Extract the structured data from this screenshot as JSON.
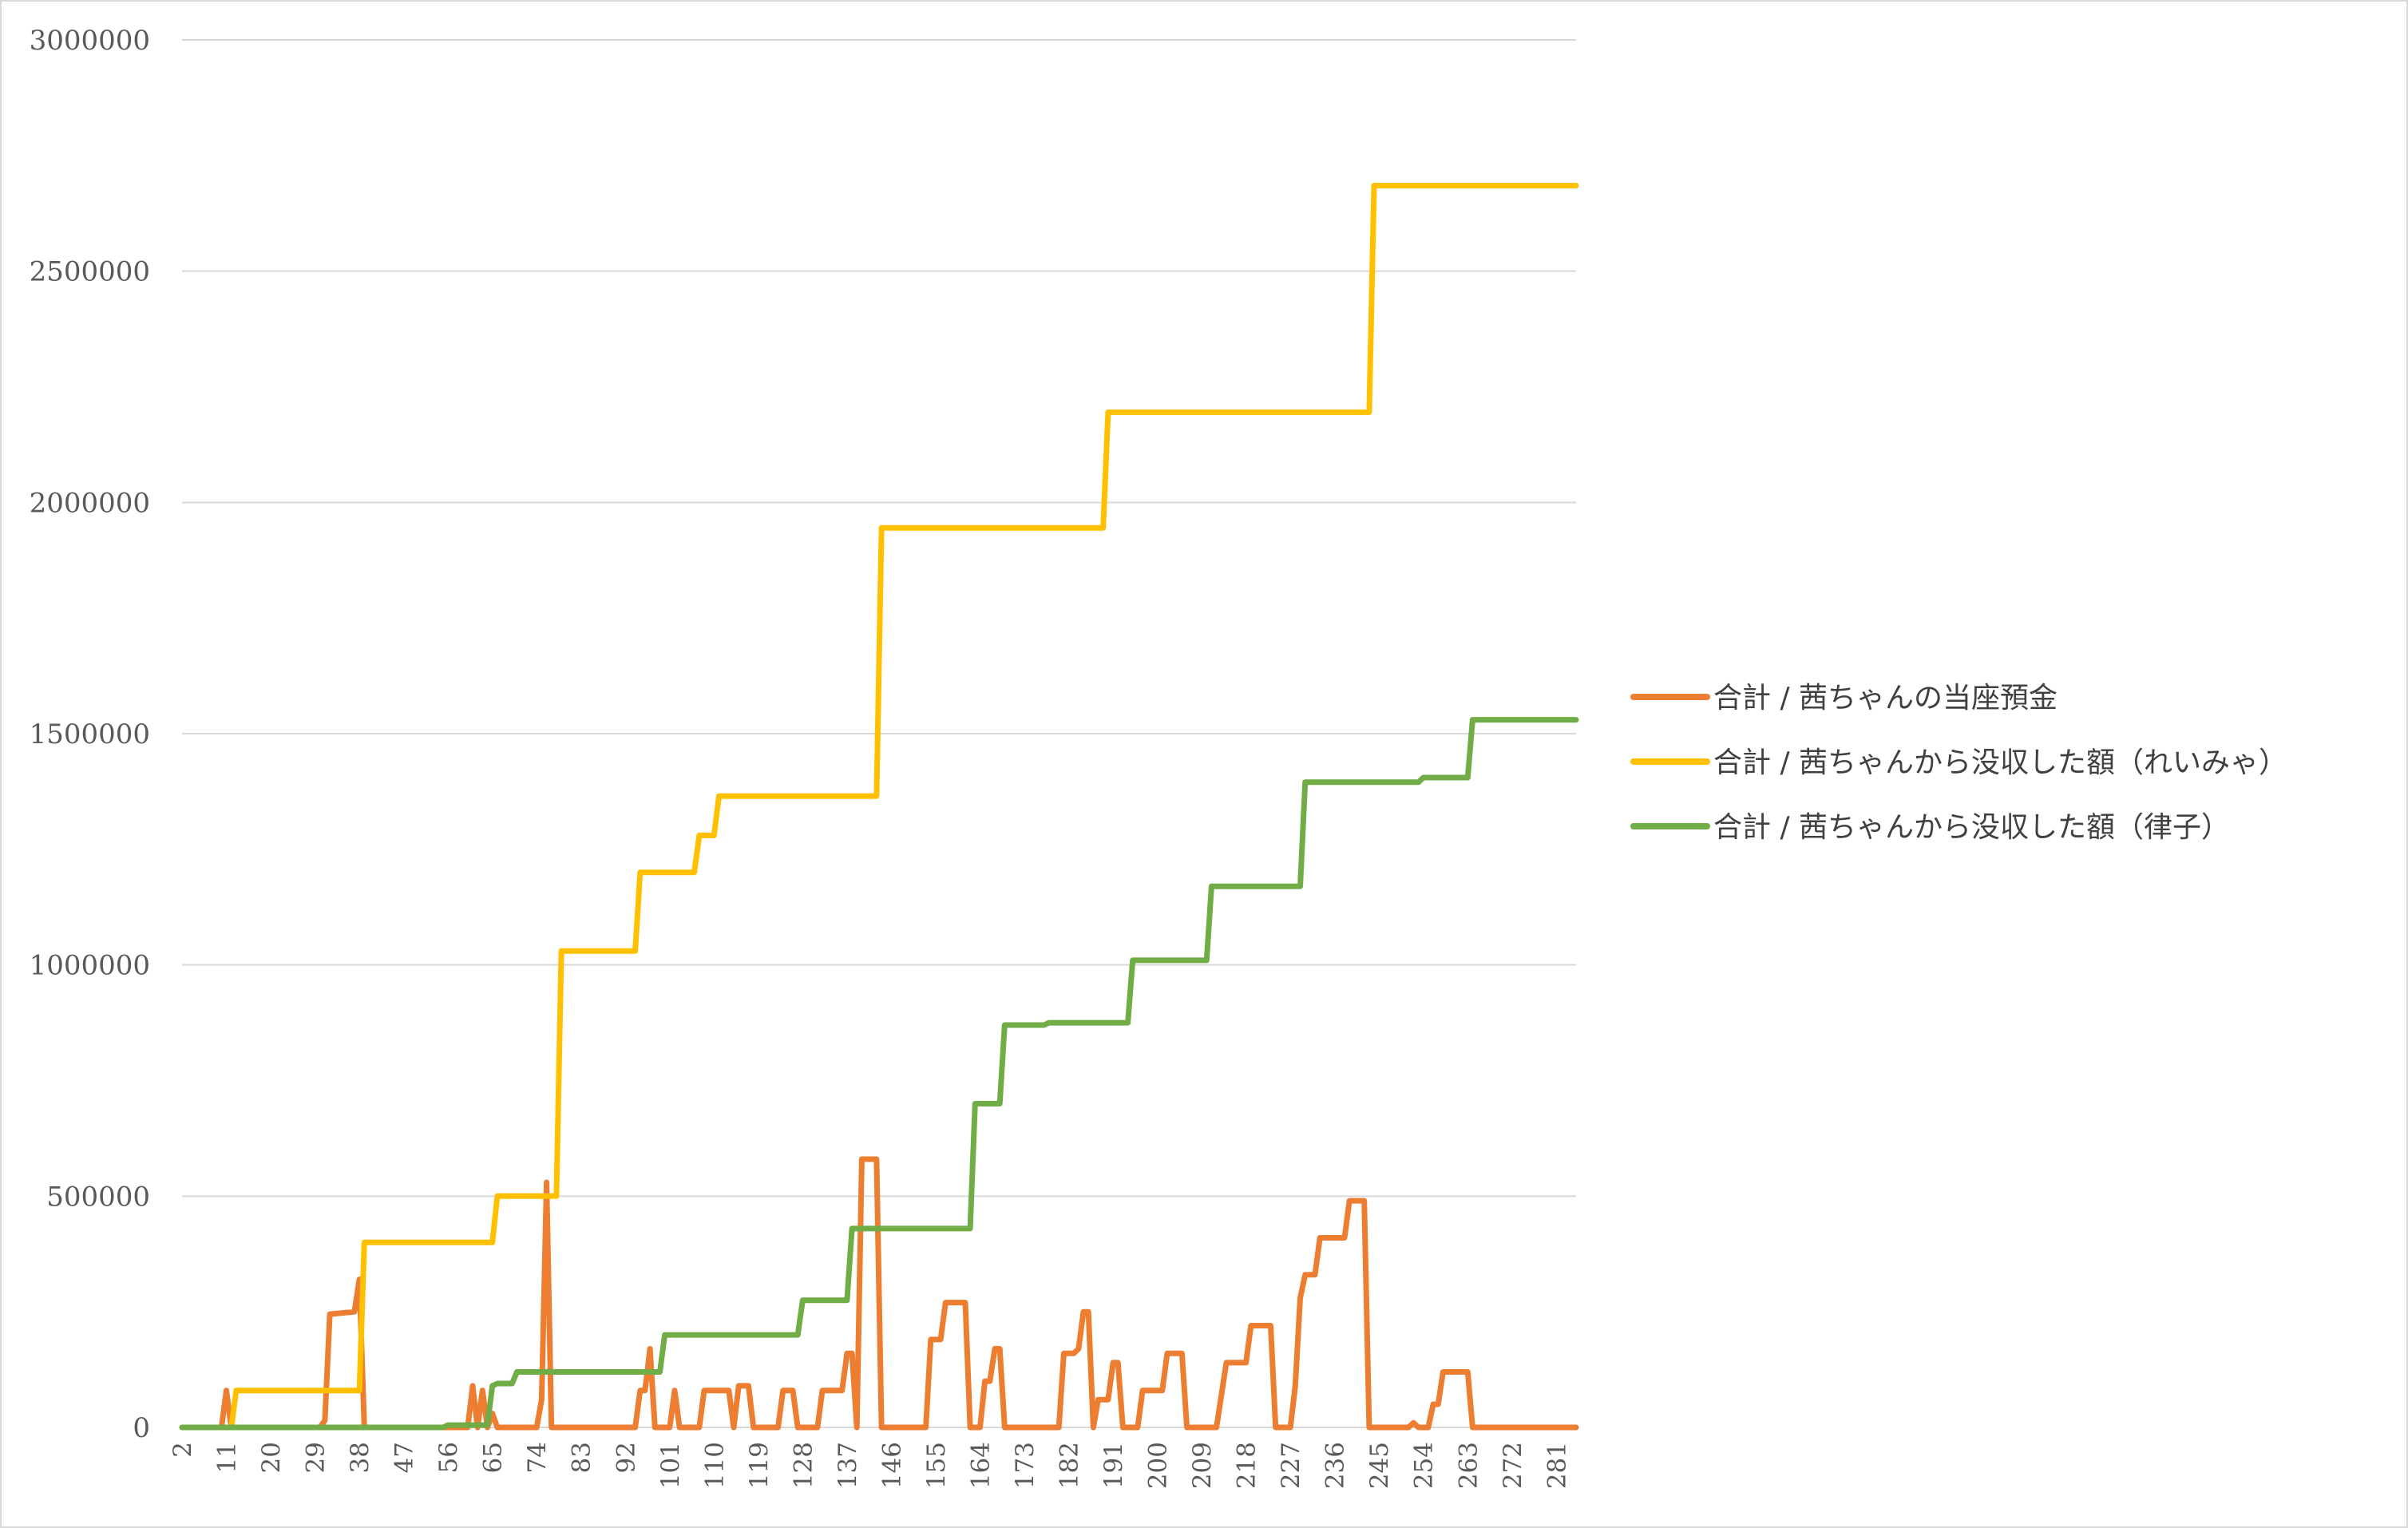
{
  "chart_data": {
    "type": "line",
    "title": "",
    "xlabel": "",
    "ylabel": "",
    "x_tick_labels": [
      "2",
      "11",
      "20",
      "29",
      "38",
      "47",
      "56",
      "65",
      "74",
      "83",
      "92",
      "101",
      "110",
      "119",
      "128",
      "137",
      "146",
      "155",
      "164",
      "173",
      "182",
      "191",
      "200",
      "209",
      "218",
      "227",
      "236",
      "245",
      "254",
      "263",
      "272",
      "281"
    ],
    "y_tick_labels": [
      "0",
      "500000",
      "1000000",
      "1500000",
      "2000000",
      "2500000",
      "3000000"
    ],
    "ylim": [
      0,
      3000000
    ],
    "xlim": [
      2,
      285
    ],
    "grid": "horizontal",
    "legend_position": "right",
    "series": [
      {
        "name": "合計 / 茜ちゃんの当座預金",
        "color": "#ED7D31",
        "points": [
          [
            2,
            0
          ],
          [
            10,
            0
          ],
          [
            11,
            80000
          ],
          [
            12,
            0
          ],
          [
            30,
            0
          ],
          [
            31,
            15000
          ],
          [
            32,
            245000
          ],
          [
            37,
            250000
          ],
          [
            38,
            320000
          ],
          [
            39,
            0
          ],
          [
            60,
            0
          ],
          [
            61,
            90000
          ],
          [
            62,
            0
          ],
          [
            63,
            80000
          ],
          [
            64,
            0
          ],
          [
            65,
            30000
          ],
          [
            66,
            0
          ],
          [
            74,
            0
          ],
          [
            75,
            60000
          ],
          [
            76,
            530000
          ],
          [
            77,
            0
          ],
          [
            94,
            0
          ],
          [
            95,
            80000
          ],
          [
            96,
            80000
          ],
          [
            97,
            170000
          ],
          [
            98,
            0
          ],
          [
            101,
            0
          ],
          [
            102,
            80000
          ],
          [
            103,
            0
          ],
          [
            107,
            0
          ],
          [
            108,
            80000
          ],
          [
            113,
            80000
          ],
          [
            114,
            0
          ],
          [
            115,
            90000
          ],
          [
            117,
            90000
          ],
          [
            118,
            0
          ],
          [
            123,
            0
          ],
          [
            124,
            80000
          ],
          [
            126,
            80000
          ],
          [
            127,
            0
          ],
          [
            131,
            0
          ],
          [
            132,
            80000
          ],
          [
            136,
            80000
          ],
          [
            137,
            160000
          ],
          [
            138,
            160000
          ],
          [
            139,
            0
          ],
          [
            140,
            580000
          ],
          [
            143,
            580000
          ],
          [
            144,
            0
          ],
          [
            153,
            0
          ],
          [
            154,
            190000
          ],
          [
            156,
            190000
          ],
          [
            157,
            270000
          ],
          [
            161,
            270000
          ],
          [
            162,
            0
          ],
          [
            164,
            0
          ],
          [
            165,
            100000
          ],
          [
            166,
            100000
          ],
          [
            167,
            170000
          ],
          [
            168,
            170000
          ],
          [
            169,
            0
          ],
          [
            180,
            0
          ],
          [
            181,
            160000
          ],
          [
            183,
            160000
          ],
          [
            184,
            170000
          ],
          [
            185,
            250000
          ],
          [
            186,
            250000
          ],
          [
            187,
            0
          ],
          [
            188,
            60000
          ],
          [
            190,
            60000
          ],
          [
            191,
            140000
          ],
          [
            192,
            140000
          ],
          [
            193,
            0
          ],
          [
            196,
            0
          ],
          [
            197,
            80000
          ],
          [
            201,
            80000
          ],
          [
            202,
            160000
          ],
          [
            204,
            160000
          ],
          [
            205,
            160000
          ],
          [
            206,
            0
          ],
          [
            212,
            0
          ],
          [
            213,
            70000
          ],
          [
            214,
            140000
          ],
          [
            218,
            140000
          ],
          [
            219,
            220000
          ],
          [
            223,
            220000
          ],
          [
            224,
            0
          ],
          [
            227,
            0
          ],
          [
            228,
            90000
          ],
          [
            229,
            280000
          ],
          [
            230,
            330000
          ],
          [
            232,
            330000
          ],
          [
            233,
            410000
          ],
          [
            238,
            410000
          ],
          [
            239,
            490000
          ],
          [
            242,
            490000
          ],
          [
            243,
            0
          ],
          [
            251,
            0
          ],
          [
            252,
            10000
          ],
          [
            253,
            0
          ],
          [
            255,
            0
          ],
          [
            256,
            50000
          ],
          [
            257,
            50000
          ],
          [
            258,
            120000
          ],
          [
            263,
            120000
          ],
          [
            264,
            0
          ],
          [
            285,
            0
          ]
        ]
      },
      {
        "name": "合計 / 茜ちゃんから没収した額（れいみゃ）",
        "color": "#FFC000",
        "points": [
          [
            2,
            0
          ],
          [
            12,
            0
          ],
          [
            13,
            80000
          ],
          [
            24,
            80000
          ],
          [
            25,
            80000
          ],
          [
            38,
            80000
          ],
          [
            39,
            400000
          ],
          [
            65,
            400000
          ],
          [
            66,
            500000
          ],
          [
            78,
            500000
          ],
          [
            79,
            1030000
          ],
          [
            94,
            1030000
          ],
          [
            95,
            1200000
          ],
          [
            106,
            1200000
          ],
          [
            107,
            1280000
          ],
          [
            110,
            1280000
          ],
          [
            111,
            1365000
          ],
          [
            143,
            1365000
          ],
          [
            144,
            1945000
          ],
          [
            189,
            1945000
          ],
          [
            190,
            2195000
          ],
          [
            243,
            2195000
          ],
          [
            244,
            2685000
          ],
          [
            285,
            2685000
          ]
        ]
      },
      {
        "name": "合計 / 茜ちゃんから没収した額（律子）",
        "color": "#70AD47",
        "points": [
          [
            2,
            0
          ],
          [
            55,
            0
          ],
          [
            56,
            5000
          ],
          [
            64,
            5000
          ],
          [
            65,
            90000
          ],
          [
            66,
            95000
          ],
          [
            69,
            95000
          ],
          [
            70,
            120000
          ],
          [
            99,
            120000
          ],
          [
            100,
            200000
          ],
          [
            127,
            200000
          ],
          [
            128,
            275000
          ],
          [
            137,
            275000
          ],
          [
            138,
            430000
          ],
          [
            162,
            430000
          ],
          [
            163,
            700000
          ],
          [
            168,
            700000
          ],
          [
            169,
            870000
          ],
          [
            177,
            870000
          ],
          [
            178,
            875000
          ],
          [
            194,
            875000
          ],
          [
            195,
            1010000
          ],
          [
            210,
            1010000
          ],
          [
            211,
            1170000
          ],
          [
            229,
            1170000
          ],
          [
            230,
            1395000
          ],
          [
            253,
            1395000
          ],
          [
            254,
            1405000
          ],
          [
            263,
            1405000
          ],
          [
            264,
            1530000
          ],
          [
            285,
            1530000
          ]
        ]
      }
    ]
  }
}
